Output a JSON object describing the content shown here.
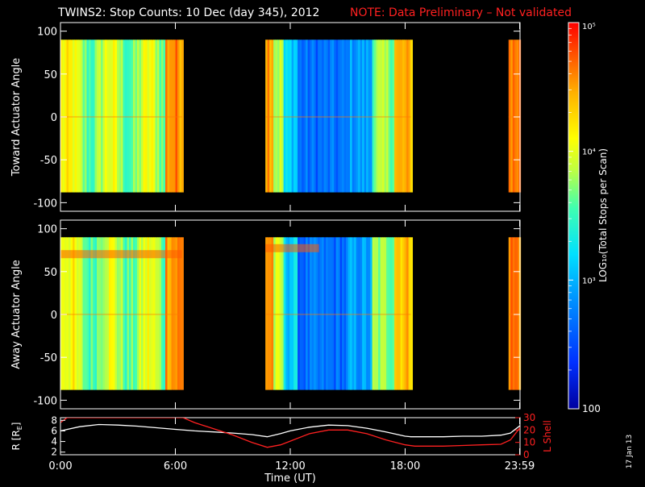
{
  "title": "TWINS2: Stop Counts: 10 Dec (day 345), 2012",
  "note": "NOTE: Data Preliminary – Not validated",
  "date_stamp": "17 Jan 13",
  "colors": {
    "background": "#000000",
    "axes": "#ffffff",
    "note": "#ff2020",
    "r_line": "#ffffff",
    "l_shell_line": "#ff2020"
  },
  "chart_data": [
    {
      "type": "heatmap",
      "name": "toward",
      "ylabel": "Toward Actuator Angle",
      "ylim": [
        -110,
        110
      ],
      "yticks": [
        100,
        50,
        0,
        -50,
        -100
      ],
      "xlim": [
        0,
        24
      ],
      "angle_range": [
        -88,
        90
      ],
      "data_blocks_hours": [
        [
          0.0,
          6.35
        ],
        [
          10.7,
          18.3
        ],
        [
          23.4,
          24.0
        ]
      ],
      "log_scale": true,
      "grid": false
    },
    {
      "type": "heatmap",
      "name": "away",
      "ylabel": "Away Actuator Angle",
      "ylim": [
        -110,
        110
      ],
      "yticks": [
        100,
        50,
        0,
        -50,
        -100
      ],
      "xlim": [
        0,
        24
      ],
      "angle_range": [
        -88,
        90
      ],
      "data_blocks_hours": [
        [
          0.0,
          6.35
        ],
        [
          10.7,
          18.3
        ],
        [
          23.4,
          24.0
        ]
      ],
      "log_scale": true,
      "grid": false
    },
    {
      "type": "line",
      "name": "ephemeris",
      "xlabel": "Time (UT)",
      "xticks": [
        "0:00",
        "6:00",
        "12:00",
        "18:00",
        "23:59"
      ],
      "xtick_hours": [
        0,
        6,
        12,
        18,
        23.98
      ],
      "ylabel_left": "R [R",
      "ylabel_left_sub": "E",
      "ylabel_left_close": "]",
      "ylim_left": [
        1.5,
        8.5
      ],
      "yticks_left": [
        "2",
        "4",
        "6",
        "8"
      ],
      "yticks_left_values": [
        2,
        4,
        6,
        8
      ],
      "ylabel_right": "L Shell",
      "ylim_right": [
        0,
        30
      ],
      "yticks_right": [
        "0",
        "10",
        "20",
        "30"
      ],
      "yticks_right_values": [
        0,
        10,
        20,
        30
      ],
      "series": [
        {
          "key": "R",
          "axis": "left",
          "x": [
            0,
            1,
            2,
            3,
            4,
            5,
            6,
            7,
            8,
            9,
            10,
            10.8,
            11.5,
            12,
            13,
            14,
            15,
            16,
            17,
            18,
            18.3,
            19,
            20,
            21,
            22,
            23,
            23.5,
            24
          ],
          "y": [
            6.0,
            6.8,
            7.2,
            7.1,
            6.9,
            6.6,
            6.3,
            6.0,
            5.8,
            5.6,
            5.3,
            4.9,
            5.5,
            6.0,
            6.7,
            7.1,
            7.0,
            6.5,
            5.8,
            5.0,
            4.9,
            4.9,
            4.9,
            5.0,
            5.0,
            5.2,
            5.6,
            7.0
          ]
        },
        {
          "key": "L",
          "axis": "right",
          "x": [
            0,
            0.35,
            6.4,
            7,
            8,
            9,
            10,
            10.8,
            11.5,
            12,
            13,
            14,
            15,
            16,
            17,
            18,
            18.5,
            19,
            20,
            21,
            22,
            23,
            23.5,
            24
          ],
          "y": [
            26,
            30,
            30,
            26,
            21,
            16,
            10,
            6,
            8,
            11,
            17,
            20,
            20,
            17,
            12,
            8,
            7,
            7,
            7,
            7.5,
            8,
            8.5,
            12,
            22
          ]
        }
      ]
    },
    {
      "type": "colorbar",
      "ylabel": "LOG₁₀(Total Stops per Scan)",
      "range": [
        100,
        100000
      ],
      "tick_labels": [
        "100",
        "10³",
        "10⁴",
        "10⁵"
      ],
      "tick_values": [
        100,
        1000,
        10000,
        100000
      ],
      "log_scale": true
    }
  ]
}
